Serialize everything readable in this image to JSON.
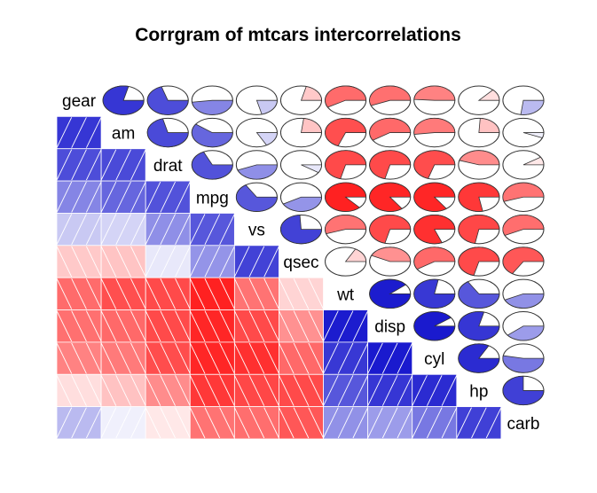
{
  "chart_data": {
    "type": "heatmap",
    "title": "Corrgram of mtcars intercorrelations",
    "variables": [
      "gear",
      "am",
      "drat",
      "mpg",
      "vs",
      "qsec",
      "wt",
      "disp",
      "cyl",
      "hp",
      "carb"
    ],
    "lower_panel": "shade",
    "upper_panel": "pie",
    "diagonal": "variable names",
    "grid": false,
    "colors": {
      "positive": "#0000C8",
      "negative": "#FF0000",
      "neutral": "#FFFFFF",
      "pie_outline": "#333333"
    },
    "correlation_matrix": [
      [
        1.0,
        0.79,
        0.7,
        0.48,
        0.21,
        -0.21,
        -0.58,
        -0.56,
        -0.49,
        -0.13,
        0.27
      ],
      [
        0.79,
        1.0,
        0.71,
        0.6,
        0.17,
        -0.23,
        -0.69,
        -0.59,
        -0.52,
        -0.24,
        0.06
      ],
      [
        0.7,
        0.71,
        1.0,
        0.68,
        0.44,
        0.09,
        -0.71,
        -0.71,
        -0.7,
        -0.45,
        -0.09
      ],
      [
        0.48,
        0.6,
        0.68,
        1.0,
        0.66,
        0.42,
        -0.87,
        -0.85,
        -0.85,
        -0.78,
        -0.55
      ],
      [
        0.21,
        0.17,
        0.44,
        0.66,
        1.0,
        0.74,
        -0.55,
        -0.71,
        -0.81,
        -0.72,
        -0.57
      ],
      [
        -0.21,
        -0.23,
        0.09,
        0.42,
        0.74,
        1.0,
        -0.17,
        -0.43,
        -0.59,
        -0.71,
        -0.66
      ],
      [
        -0.58,
        -0.69,
        -0.71,
        -0.87,
        -0.55,
        -0.17,
        1.0,
        0.89,
        0.78,
        0.66,
        0.43
      ],
      [
        -0.56,
        -0.59,
        -0.71,
        -0.85,
        -0.71,
        -0.43,
        0.89,
        1.0,
        0.9,
        0.79,
        0.39
      ],
      [
        -0.49,
        -0.52,
        -0.7,
        -0.85,
        -0.81,
        -0.59,
        0.78,
        0.9,
        1.0,
        0.83,
        0.53
      ],
      [
        -0.13,
        -0.24,
        -0.45,
        -0.78,
        -0.72,
        -0.71,
        0.66,
        0.79,
        0.83,
        1.0,
        0.75
      ],
      [
        0.27,
        0.06,
        -0.09,
        -0.55,
        -0.57,
        -0.66,
        0.43,
        0.39,
        0.53,
        0.75,
        1.0
      ]
    ]
  }
}
